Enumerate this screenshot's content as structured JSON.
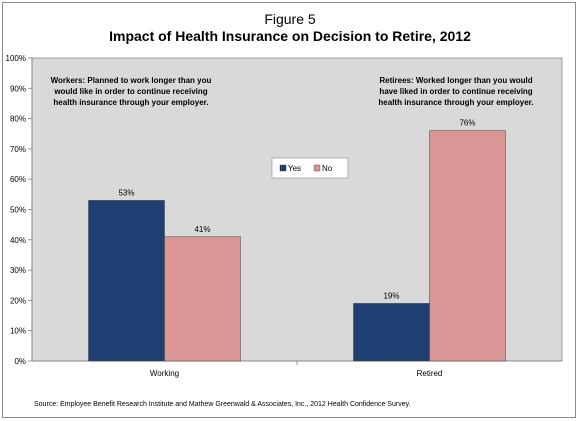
{
  "figure_label": "Figure 5",
  "source_note": "Source: Employee Benefit Research Institute and Mathew Greenwald & Associates, Inc., 2012 Health Confidence Survey.",
  "chart_data": {
    "type": "bar",
    "title": "Impact of Health Insurance on Decision to Retire, 2012",
    "categories": [
      "Working",
      "Retired"
    ],
    "series": [
      {
        "name": "Yes",
        "values": [
          53,
          19
        ],
        "color": "#1f3f73"
      },
      {
        "name": "No",
        "values": [
          41,
          76
        ],
        "color": "#d99694"
      }
    ],
    "value_labels": [
      [
        "53%",
        "19%"
      ],
      [
        "41%",
        "76%"
      ]
    ],
    "ylim": [
      0,
      100
    ],
    "yticks": [
      "0%",
      "10%",
      "20%",
      "30%",
      "40%",
      "50%",
      "60%",
      "70%",
      "80%",
      "90%",
      "100%"
    ],
    "xlabel": "",
    "ylabel": "",
    "grid": false,
    "legend_position": "center",
    "plot_background": "#d9d9d9",
    "annotations": [
      [
        "Workers: Planned to work longer than you",
        "would like in order to continue receiving",
        "health insurance through your employer."
      ],
      [
        "Retirees: Worked longer than you would",
        "have liked in order to continue receiving",
        "health insurance through your employer."
      ]
    ]
  }
}
